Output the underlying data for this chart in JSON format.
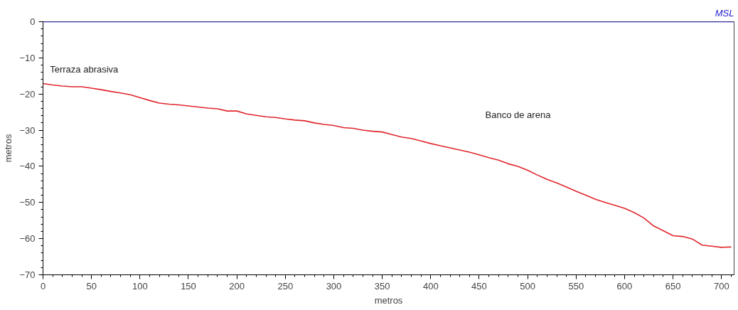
{
  "chart_data": {
    "type": "line",
    "xlabel": "metros",
    "ylabel": "metros",
    "xlim": [
      0,
      713
    ],
    "ylim": [
      -70,
      0
    ],
    "xticks": [
      0,
      50,
      100,
      150,
      200,
      250,
      300,
      350,
      400,
      450,
      500,
      550,
      600,
      650,
      700
    ],
    "yticks": [
      -70,
      -60,
      -50,
      -40,
      -30,
      -20,
      -10,
      0
    ],
    "grid": false,
    "marker": "none",
    "line_style": "solid",
    "x": [
      0,
      10,
      20,
      30,
      40,
      50,
      60,
      70,
      80,
      90,
      100,
      110,
      120,
      130,
      140,
      150,
      160,
      170,
      180,
      190,
      200,
      210,
      220,
      230,
      240,
      250,
      260,
      270,
      280,
      290,
      300,
      310,
      320,
      330,
      340,
      350,
      360,
      370,
      380,
      390,
      400,
      410,
      420,
      430,
      440,
      450,
      460,
      470,
      480,
      490,
      500,
      510,
      520,
      530,
      540,
      550,
      560,
      570,
      580,
      590,
      600,
      610,
      620,
      630,
      640,
      650,
      660,
      670,
      680,
      690,
      700,
      710
    ],
    "series": [
      {
        "color": "#e0262c",
        "values": [
          -17.1,
          -17.5,
          -17.8,
          -18.0,
          -18.0,
          -18.4,
          -18.8,
          -19.3,
          -19.7,
          -20.2,
          -21.0,
          -21.8,
          -22.5,
          -22.8,
          -23.0,
          -23.3,
          -23.6,
          -23.9,
          -24.1,
          -24.7,
          -24.7,
          -25.5,
          -25.9,
          -26.3,
          -26.5,
          -26.9,
          -27.2,
          -27.4,
          -28.0,
          -28.4,
          -28.7,
          -29.3,
          -29.5,
          -30.0,
          -30.3,
          -30.5,
          -31.2,
          -31.9,
          -32.3,
          -33.0,
          -33.7,
          -34.3,
          -34.9,
          -35.5,
          -36.1,
          -36.8,
          -37.6,
          -38.3,
          -39.3,
          -40.0,
          -41.1,
          -42.4,
          -43.6,
          -44.6,
          -45.7,
          -46.9,
          -48.0,
          -49.1,
          -50.0,
          -50.8,
          -51.6,
          -52.8,
          -54.3,
          -56.5,
          -57.8,
          -59.2,
          -59.4,
          -60.1,
          -61.8,
          -62.1,
          -62.4,
          -62.3
        ]
      }
    ],
    "ref_lines": [
      {
        "axis": "y",
        "value": 0,
        "label": "MSL",
        "color": "#2020d0"
      }
    ],
    "annotations": [
      "Terraza abrasiva",
      "Banco de arena"
    ]
  }
}
